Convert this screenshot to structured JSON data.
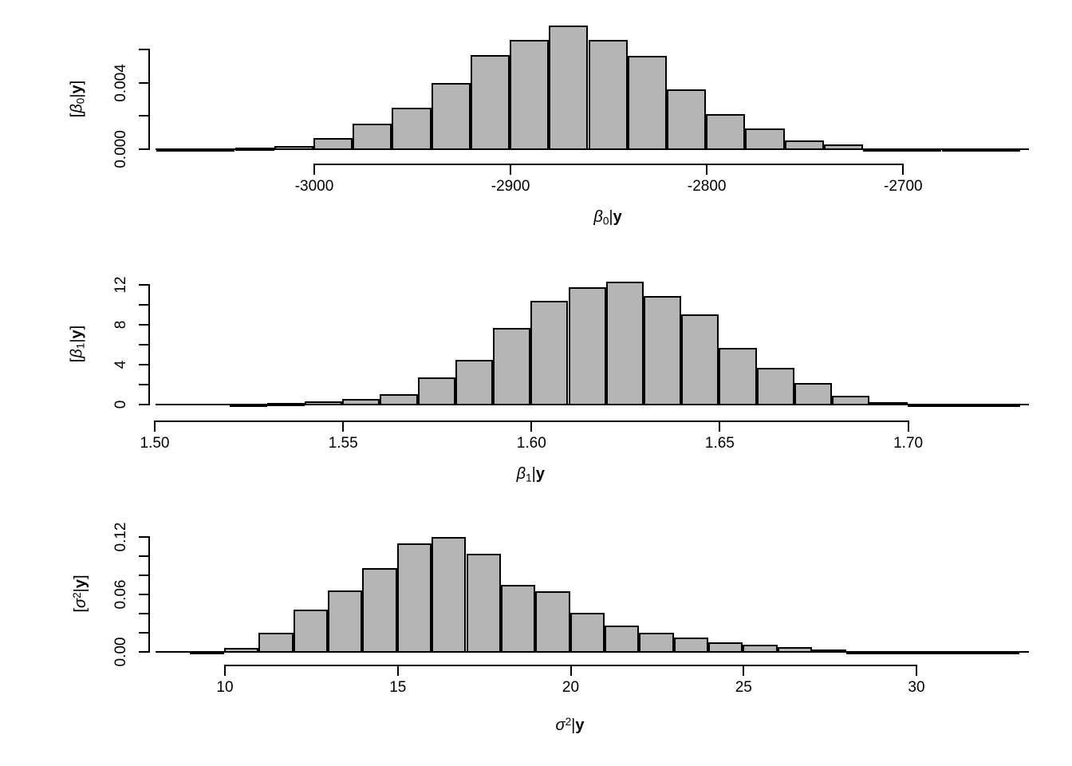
{
  "page": {
    "background": "#ffffff",
    "text_color": "#000000"
  },
  "chart_data": [
    {
      "type": "bar",
      "name": "beta0-posterior-histogram",
      "description": "histogram of posterior density of beta0 given y",
      "ylabel_segments": [
        {
          "t": "["
        },
        {
          "t": "β",
          "greek": true
        },
        {
          "t": "0",
          "sub": true
        },
        {
          "t": "|"
        },
        {
          "t": "y",
          "bold": true
        },
        {
          "t": "]"
        }
      ],
      "xlabel_segments": [
        {
          "t": "β",
          "greek": true
        },
        {
          "t": "0",
          "sub": true
        },
        {
          "t": "|"
        },
        {
          "t": "y",
          "bold": true
        }
      ],
      "bin_start": -3080,
      "bin_width": 20,
      "values": [
        3e-05,
        8e-05,
        0.00013,
        0.00025,
        0.00072,
        0.00157,
        0.00256,
        0.00403,
        0.00572,
        0.00663,
        0.00747,
        0.00663,
        0.00567,
        0.00364,
        0.00217,
        0.00128,
        0.00056,
        0.00032,
        0.00012,
        8e-05,
        5e-05,
        3e-05
      ],
      "ylim": [
        0,
        0.006
      ],
      "xlim": [
        -3083,
        -2637
      ],
      "grid": "off",
      "legend": "none",
      "x_ticks": [
        {
          "value": -3000,
          "label": "-3000"
        },
        {
          "value": -2900,
          "label": "-2900"
        },
        {
          "value": -2800,
          "label": "-2800"
        },
        {
          "value": -2700,
          "label": "-2700"
        }
      ],
      "y_ticks": [
        {
          "value": 0,
          "label": "0.000"
        },
        {
          "value": 0.002,
          "label": ""
        },
        {
          "value": 0.004,
          "label": "0.004"
        },
        {
          "value": 0.006,
          "label": ""
        }
      ],
      "bar_fill": "#b5b5b5",
      "bar_border": "#000000"
    },
    {
      "type": "bar",
      "name": "beta1-posterior-histogram",
      "description": "histogram of posterior density of beta1 given y",
      "ylabel_segments": [
        {
          "t": "["
        },
        {
          "t": "β",
          "greek": true
        },
        {
          "t": "1",
          "sub": true
        },
        {
          "t": "|"
        },
        {
          "t": "y",
          "bold": true
        },
        {
          "t": "]"
        }
      ],
      "xlabel_segments": [
        {
          "t": "β",
          "greek": true
        },
        {
          "t": "1",
          "sub": true
        },
        {
          "t": "|"
        },
        {
          "t": "y",
          "bold": true
        }
      ],
      "bin_start": 1.52,
      "bin_width": 0.01,
      "values": [
        0.1,
        0.22,
        0.37,
        0.61,
        1.15,
        2.83,
        4.53,
        7.76,
        10.48,
        11.84,
        12.37,
        10.95,
        9.15,
        5.74,
        3.74,
        2.22,
        0.94,
        0.3,
        0.16,
        0.06,
        0.03
      ],
      "ylim": [
        0,
        12
      ],
      "xlim": [
        1.5,
        1.732
      ],
      "grid": "off",
      "legend": "none",
      "x_ticks": [
        {
          "value": 1.5,
          "label": "1.50"
        },
        {
          "value": 1.55,
          "label": "1.55"
        },
        {
          "value": 1.6,
          "label": "1.60"
        },
        {
          "value": 1.65,
          "label": "1.65"
        },
        {
          "value": 1.7,
          "label": "1.70"
        }
      ],
      "y_ticks": [
        {
          "value": 0,
          "label": "0"
        },
        {
          "value": 2,
          "label": ""
        },
        {
          "value": 4,
          "label": "4"
        },
        {
          "value": 6,
          "label": ""
        },
        {
          "value": 8,
          "label": "8"
        },
        {
          "value": 10,
          "label": ""
        },
        {
          "value": 12,
          "label": "12"
        }
      ],
      "bar_fill": "#b5b5b5",
      "bar_border": "#000000"
    },
    {
      "type": "bar",
      "name": "sigma2-posterior-histogram",
      "description": "histogram of posterior density of sigma squared given y",
      "ylabel_segments": [
        {
          "t": "["
        },
        {
          "t": "σ",
          "greek": true
        },
        {
          "t": "2",
          "sup": true
        },
        {
          "t": "|"
        },
        {
          "t": "y",
          "bold": true
        },
        {
          "t": "]"
        }
      ],
      "xlabel_segments": [
        {
          "t": "σ",
          "greek": true
        },
        {
          "t": "2",
          "sup": true
        },
        {
          "t": "|"
        },
        {
          "t": "y",
          "bold": true
        }
      ],
      "bin_start": 9,
      "bin_width": 1,
      "values": [
        0.001,
        0.005,
        0.021,
        0.045,
        0.065,
        0.088,
        0.114,
        0.121,
        0.103,
        0.071,
        0.064,
        0.042,
        0.028,
        0.021,
        0.016,
        0.011,
        0.008,
        0.0055,
        0.003,
        0.002,
        0.001,
        0.0006,
        0.0005,
        0.0003
      ],
      "ylim": [
        0,
        0.12
      ],
      "xlim": [
        8.9,
        33.1
      ],
      "grid": "off",
      "legend": "none",
      "x_ticks": [
        {
          "value": 10,
          "label": "10"
        },
        {
          "value": 15,
          "label": "15"
        },
        {
          "value": 20,
          "label": "20"
        },
        {
          "value": 25,
          "label": "25"
        },
        {
          "value": 30,
          "label": "30"
        }
      ],
      "y_ticks": [
        {
          "value": 0,
          "label": "0.00"
        },
        {
          "value": 0.02,
          "label": ""
        },
        {
          "value": 0.04,
          "label": ""
        },
        {
          "value": 0.06,
          "label": "0.06"
        },
        {
          "value": 0.08,
          "label": ""
        },
        {
          "value": 0.1,
          "label": ""
        },
        {
          "value": 0.12,
          "label": "0.12"
        }
      ],
      "bar_fill": "#b5b5b5",
      "bar_border": "#000000"
    }
  ]
}
